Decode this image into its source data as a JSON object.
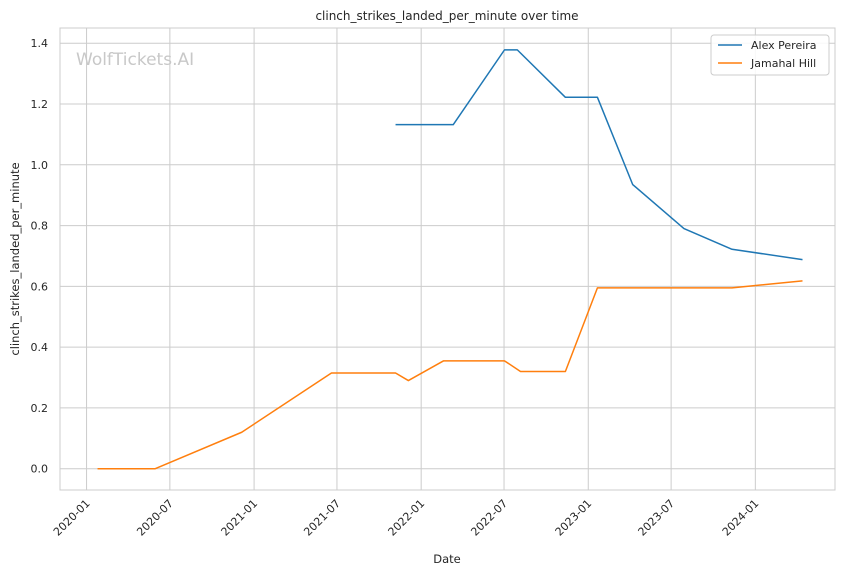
{
  "watermark": "WolfTickets.AI",
  "chart_data": {
    "type": "line",
    "title": "clinch_strikes_landed_per_minute over time",
    "xlabel": "Date",
    "ylabel": "clinch_strikes_landed_per_minute",
    "x_ticks": [
      "2020-01",
      "2020-07",
      "2021-01",
      "2021-07",
      "2022-01",
      "2022-07",
      "2023-01",
      "2023-07",
      "2024-01"
    ],
    "y_ticks": [
      "0.0",
      "0.2",
      "0.4",
      "0.6",
      "0.8",
      "1.0",
      "1.2",
      "1.4"
    ],
    "xlim": [
      "2019-11-04",
      "2024-06-23"
    ],
    "ylim": [
      -0.07,
      1.45
    ],
    "grid": true,
    "legend_position": "top-right",
    "series": [
      {
        "name": "Alex Pereira",
        "color": "#1f77b4",
        "points": [
          {
            "x": "2021-11-06",
            "y": 1.132
          },
          {
            "x": "2022-03-12",
            "y": 1.132
          },
          {
            "x": "2022-07-02",
            "y": 1.378
          },
          {
            "x": "2022-07-30",
            "y": 1.378
          },
          {
            "x": "2022-11-12",
            "y": 1.222
          },
          {
            "x": "2023-01-21",
            "y": 1.222
          },
          {
            "x": "2023-04-08",
            "y": 0.935
          },
          {
            "x": "2023-07-29",
            "y": 0.79
          },
          {
            "x": "2023-11-11",
            "y": 0.722
          },
          {
            "x": "2024-04-13",
            "y": 0.688
          }
        ]
      },
      {
        "name": "Jamahal Hill",
        "color": "#ff7f0e",
        "points": [
          {
            "x": "2020-01-25",
            "y": 0.0
          },
          {
            "x": "2020-05-30",
            "y": 0.0
          },
          {
            "x": "2020-12-05",
            "y": 0.12
          },
          {
            "x": "2021-06-19",
            "y": 0.315
          },
          {
            "x": "2021-11-06",
            "y": 0.315
          },
          {
            "x": "2021-12-04",
            "y": 0.29
          },
          {
            "x": "2022-02-19",
            "y": 0.355
          },
          {
            "x": "2022-07-02",
            "y": 0.355
          },
          {
            "x": "2022-08-06",
            "y": 0.32
          },
          {
            "x": "2022-11-12",
            "y": 0.32
          },
          {
            "x": "2023-01-21",
            "y": 0.595
          },
          {
            "x": "2023-11-11",
            "y": 0.595
          },
          {
            "x": "2024-04-13",
            "y": 0.618
          }
        ]
      }
    ]
  }
}
